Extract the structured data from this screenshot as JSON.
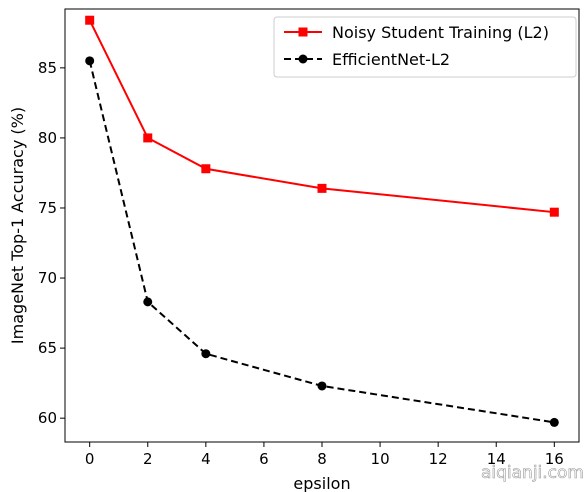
{
  "chart_data": {
    "type": "line",
    "xlabel": "epsilon",
    "ylabel": "ImageNet Top-1 Accuracy (%)",
    "xlim": [
      -0.85,
      16.85
    ],
    "ylim": [
      58.3,
      89.2
    ],
    "xticks": [
      0,
      2,
      4,
      6,
      8,
      10,
      12,
      14,
      16
    ],
    "yticks": [
      60,
      65,
      70,
      75,
      80,
      85
    ],
    "grid": false,
    "legend_position": "top-right",
    "series": [
      {
        "name": "Noisy Student Training (L2)",
        "color": "#ff0000",
        "line_style": "solid",
        "marker": "square",
        "x": [
          0,
          2,
          4,
          8,
          16
        ],
        "y": [
          88.4,
          80.0,
          77.8,
          76.4,
          74.7
        ]
      },
      {
        "name": "EfficientNet-L2",
        "color": "#000000",
        "line_style": "dashed",
        "marker": "circle",
        "x": [
          0,
          2,
          4,
          8,
          16
        ],
        "y": [
          85.5,
          68.3,
          64.6,
          62.3,
          59.7
        ]
      }
    ]
  },
  "watermark": "aiqianji.com"
}
